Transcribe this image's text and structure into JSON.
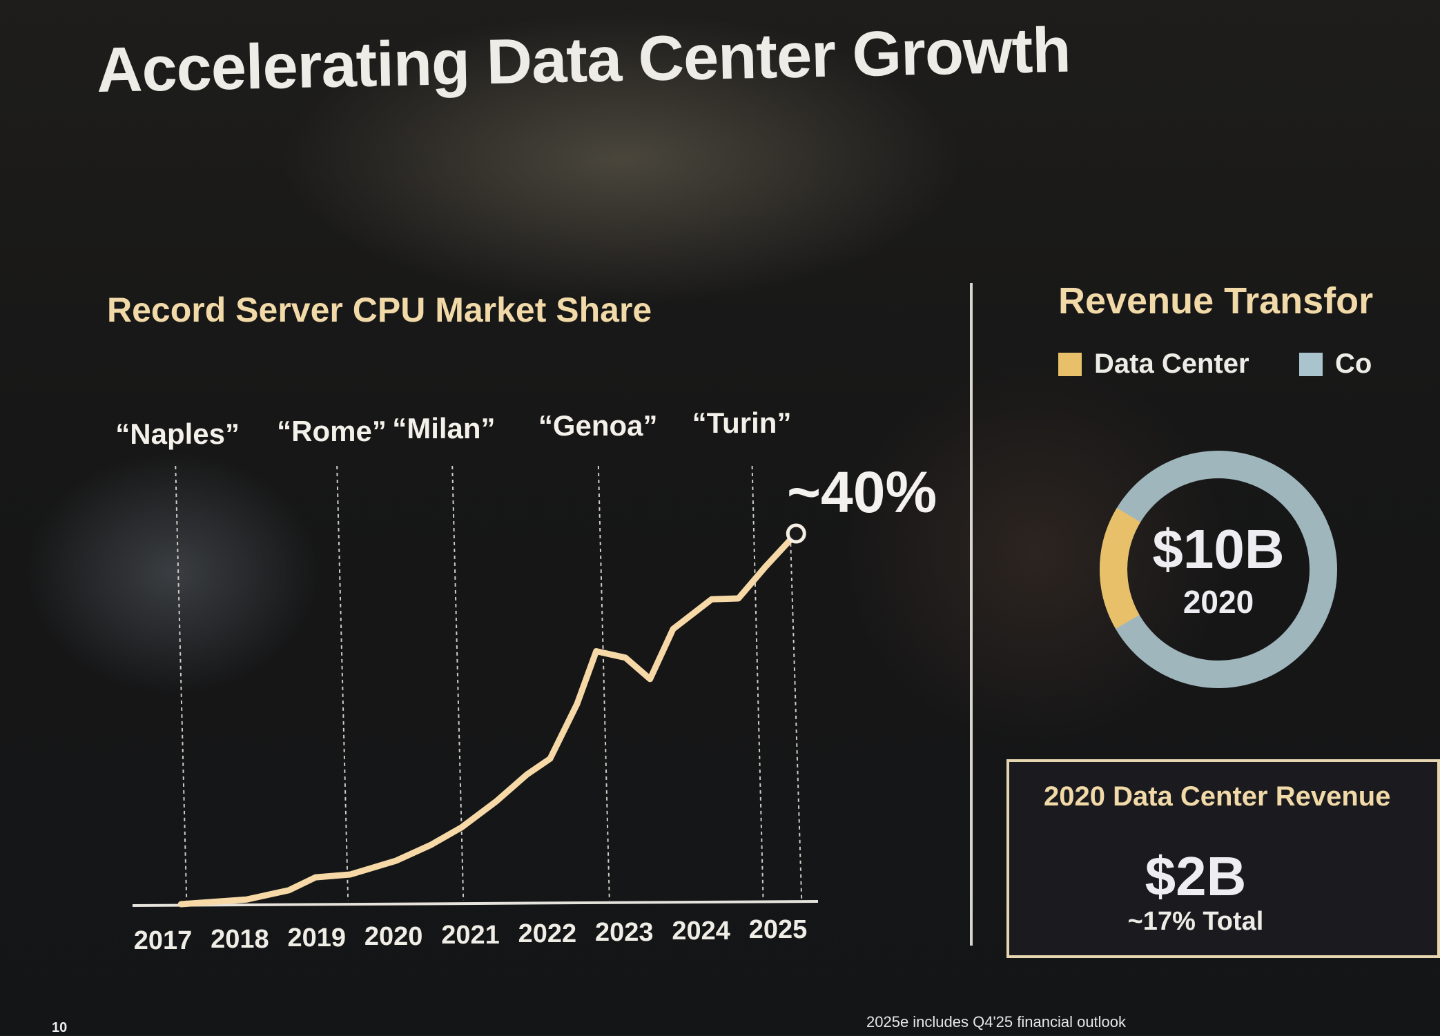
{
  "slide": {
    "title": "Accelerating Data Center Growth",
    "page_number": "10",
    "footnote": "2025e includes Q4'25 financial outlook"
  },
  "left_panel": {
    "title": "Record Server CPU Market Share",
    "callout": "~40%"
  },
  "chart_data": {
    "type": "line",
    "title": "Record Server CPU Market Share",
    "xlabel": "",
    "ylabel": "",
    "x_tick_labels": [
      "2017",
      "2018",
      "2019",
      "2020",
      "2021",
      "2022",
      "2023",
      "2024",
      "2025"
    ],
    "xlim": [
      2016.8,
      2025.5
    ],
    "ylim": [
      0,
      42
    ],
    "grid": false,
    "series": [
      {
        "x": [
          2017.2,
          2018.05,
          2018.6,
          2018.95,
          2019.4,
          2020.0,
          2020.45,
          2020.85,
          2021.3,
          2021.7,
          2022.0,
          2022.35,
          2022.6,
          2022.98,
          2023.3,
          2023.6,
          2024.1,
          2024.45,
          2024.8,
          2025.2
        ],
        "y": [
          0,
          0.5,
          1.5,
          2.9,
          3.2,
          4.7,
          6.4,
          8.3,
          11.1,
          14,
          15.7,
          21.6,
          27.3,
          26.6,
          24.3,
          29.7,
          32.9,
          33,
          36.4,
          40
        ]
      }
    ],
    "annotations": [
      {
        "label": "“Naples”",
        "x": 2017.2
      },
      {
        "label": "“Rome”",
        "x": 2019.3
      },
      {
        "label": "“Milan”",
        "x": 2020.8
      },
      {
        "label": "“Genoa”",
        "x": 2022.7
      },
      {
        "label": "“Turin”",
        "x": 2024.7
      }
    ],
    "end_label": "~40%",
    "line_color": "#f6d9a6"
  },
  "right_panel": {
    "title": "Revenue Transfor",
    "legend": [
      {
        "label": "Data Center",
        "color": "#e8c06a"
      },
      {
        "label": "Co",
        "color": "#a9c4cc"
      }
    ],
    "donut": {
      "value": "$10B",
      "year": "2020",
      "data_center_share": 17,
      "colors": {
        "data_center": "#e8c06a",
        "other": "#9fb6bc"
      }
    },
    "box": {
      "title": "2020 Data Center Revenue",
      "value": "$2B",
      "subtitle": "~17% Total"
    }
  }
}
